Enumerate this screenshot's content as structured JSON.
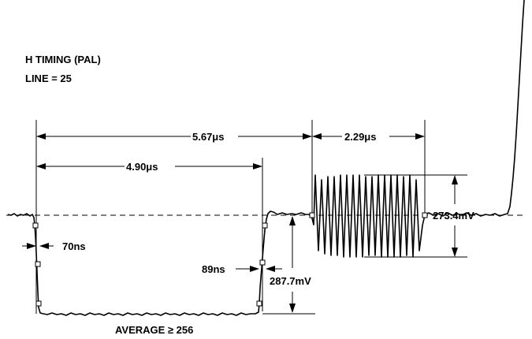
{
  "title": {
    "line1": "H TIMING  (PAL)",
    "line2": "LINE = 25"
  },
  "measurements": {
    "sync_to_burst_end": "5.67μs",
    "burst_duration": "2.29μs",
    "sync_width": "4.90μs",
    "fall_time": "70ns",
    "rise_time": "89ns",
    "burst_amplitude": "273.4mV",
    "sync_amplitude": "287.7mV",
    "average_label": "AVERAGE ≥ 256"
  }
}
